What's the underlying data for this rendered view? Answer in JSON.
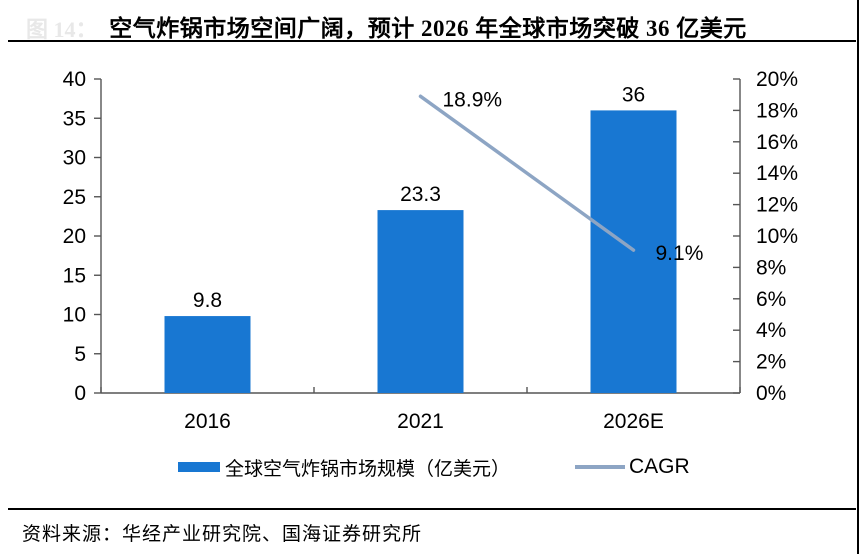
{
  "figure_label": "图 14：",
  "title": "空气炸锅市场空间广阔，预计 2026 年全球市场突破 36 亿美元",
  "source": "资料来源：华经产业研究院、国海证券研究所",
  "legend": {
    "bar_label": "全球空气炸锅市场规模（亿美元）",
    "line_label": "CAGR"
  },
  "colors": {
    "bar": "#1877d2",
    "line": "#8da5c4",
    "axis": "#555555",
    "faint_label": "#e8e8e8"
  },
  "chart_data": {
    "type": "bar",
    "categories": [
      "2016",
      "2021",
      "2026E"
    ],
    "series": [
      {
        "name": "全球空气炸锅市场规模（亿美元）",
        "type": "bar",
        "axis": "left",
        "values": [
          9.8,
          23.3,
          36
        ],
        "labels": [
          "9.8",
          "23.3",
          "36"
        ]
      },
      {
        "name": "CAGR",
        "type": "line",
        "axis": "right",
        "values": [
          null,
          18.9,
          9.1
        ],
        "labels": [
          null,
          "18.9%",
          "9.1%"
        ]
      }
    ],
    "left_axis": {
      "min": 0,
      "max": 40,
      "step": 5,
      "tick_labels": [
        "0",
        "5",
        "10",
        "15",
        "20",
        "25",
        "30",
        "35",
        "40"
      ]
    },
    "right_axis": {
      "min": 0,
      "max": 20,
      "step": 2,
      "tick_labels": [
        "0%",
        "2%",
        "4%",
        "6%",
        "8%",
        "10%",
        "12%",
        "14%",
        "16%",
        "18%",
        "20%"
      ]
    },
    "grid": false,
    "legend_position": "bottom"
  }
}
